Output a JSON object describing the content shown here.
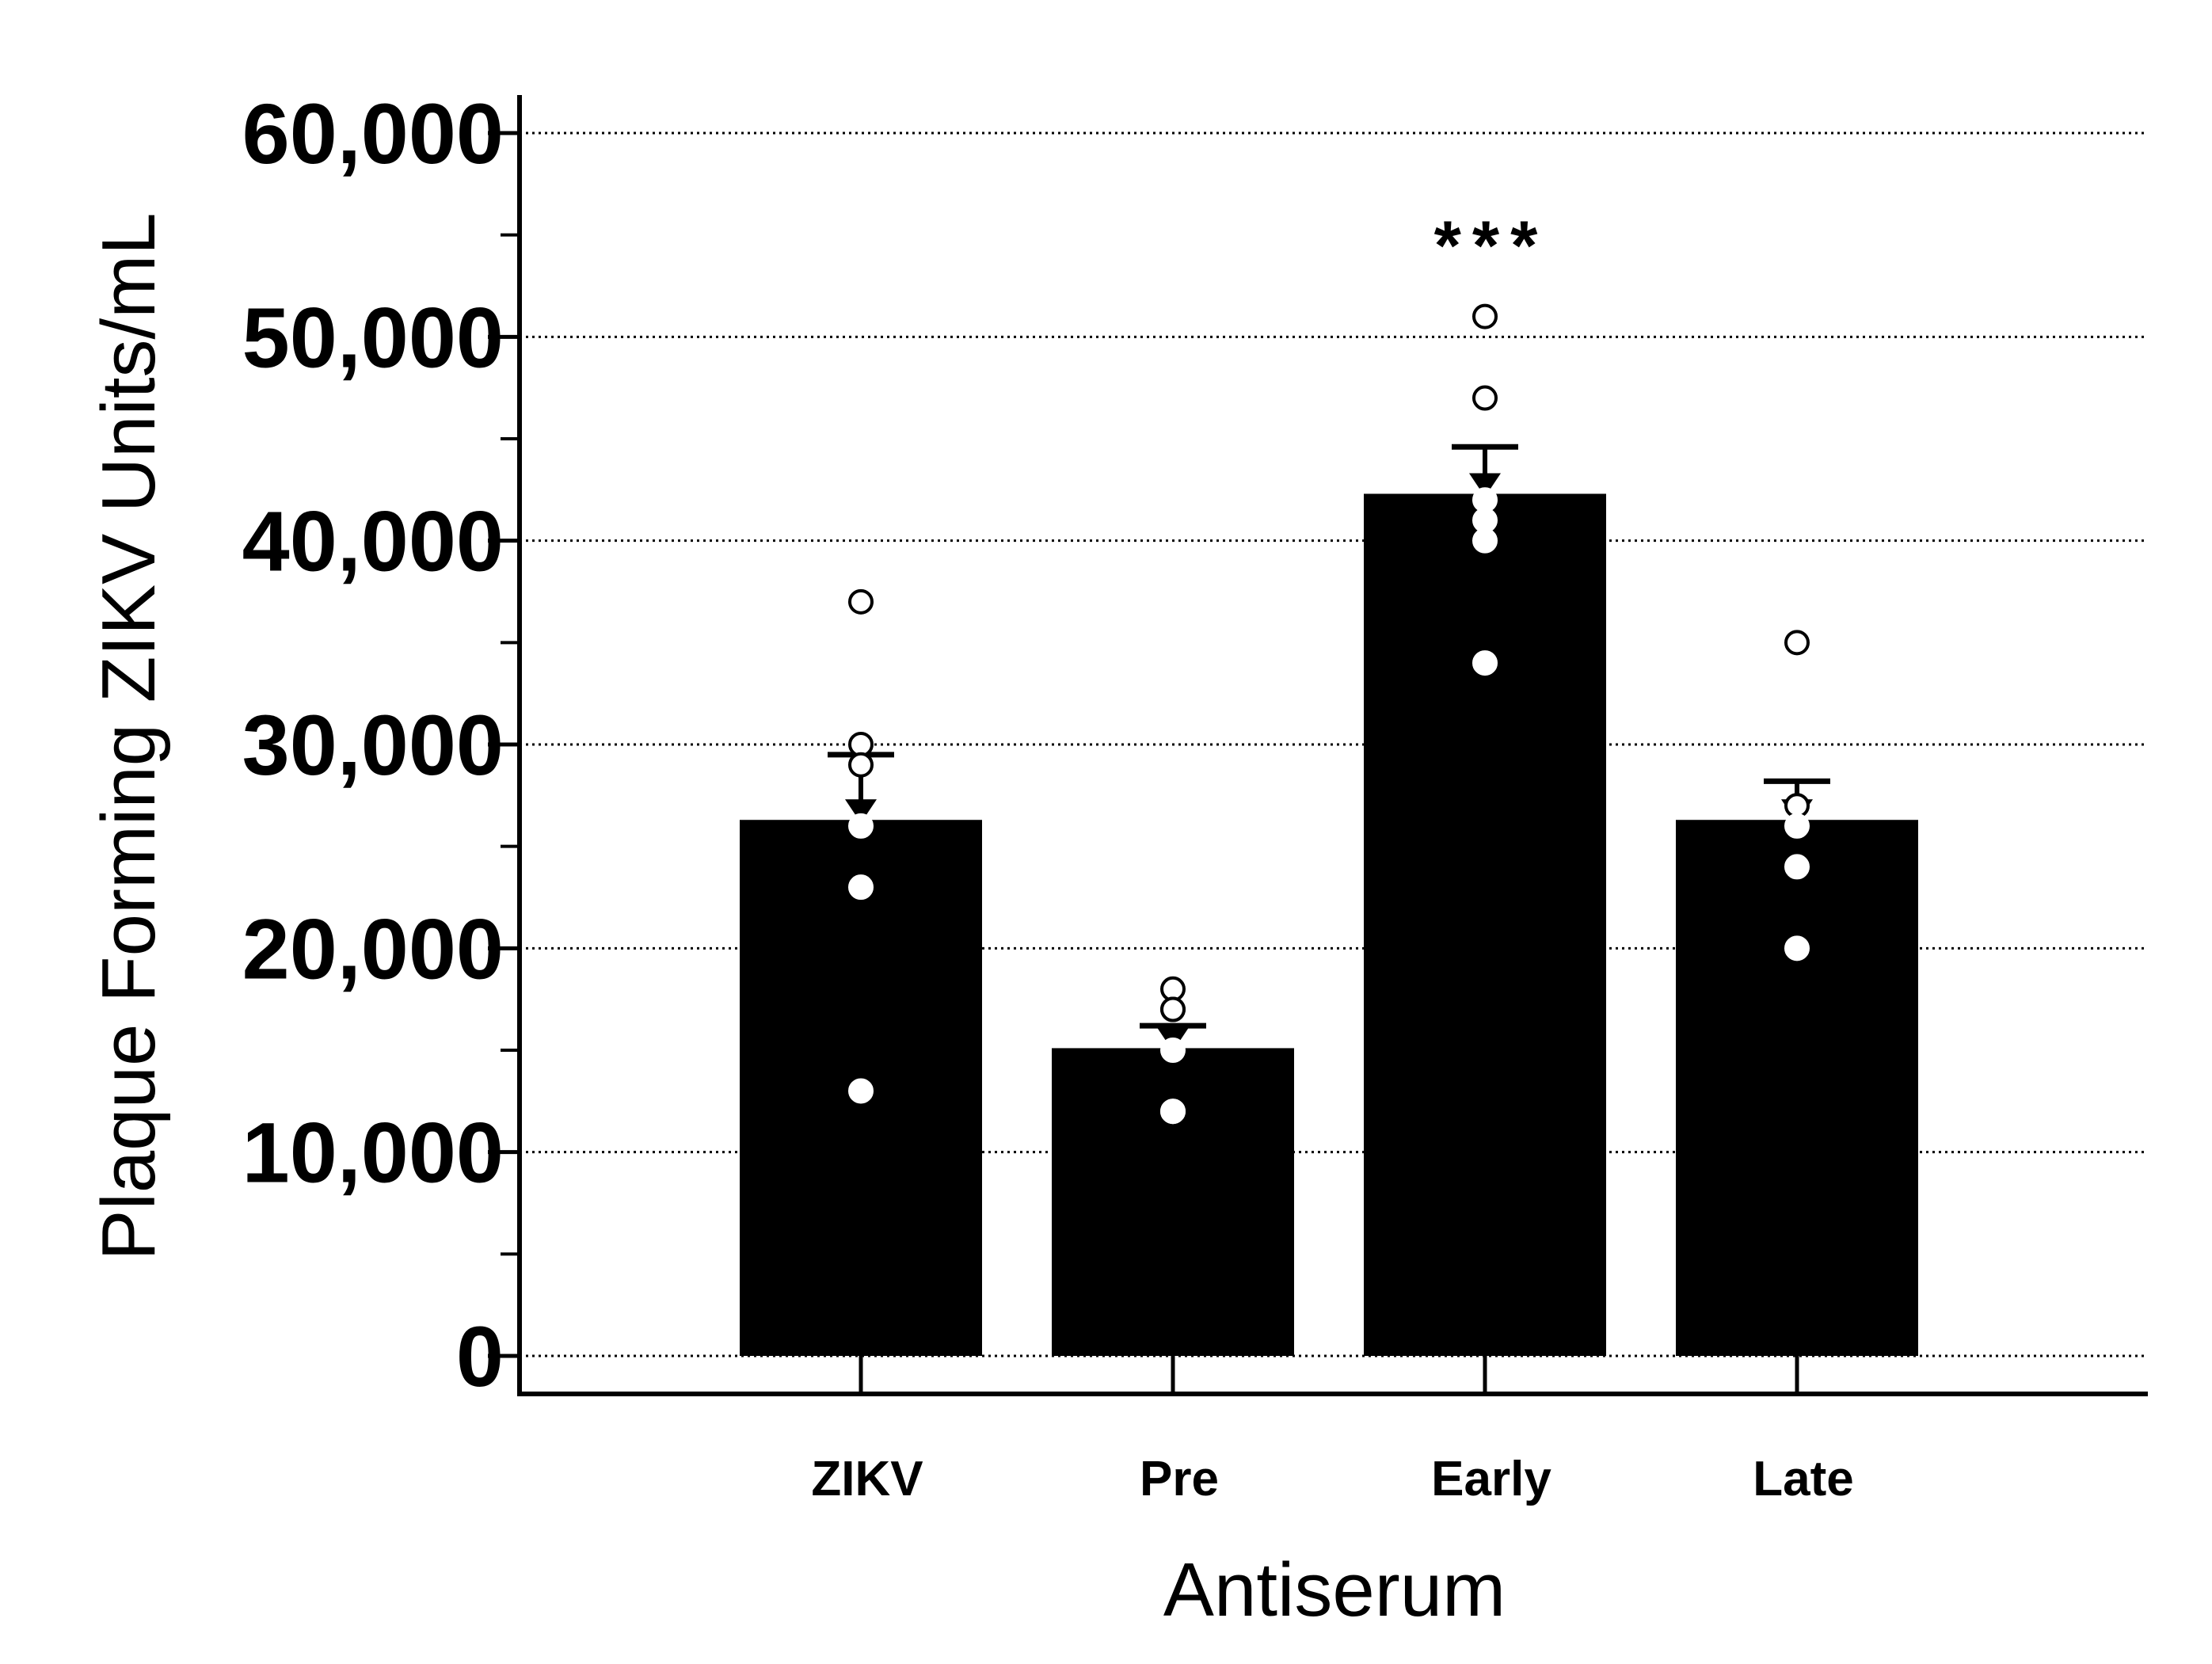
{
  "chart_data": {
    "type": "bar",
    "title": "",
    "xlabel": "Antiserum",
    "ylabel": "Plaque Forming ZIKV Units/mL",
    "ylim": [
      0,
      60000
    ],
    "yticks": [
      0,
      10000,
      20000,
      30000,
      40000,
      50000,
      60000
    ],
    "ytick_labels": [
      "0",
      "10,000",
      "20,000",
      "30,000",
      "40,000",
      "50,000",
      "60,000"
    ],
    "grid": true,
    "legend": "none",
    "categories": [
      "ZIKV",
      "Pre",
      "Early",
      "Late"
    ],
    "values": [
      26300,
      15100,
      42300,
      26300
    ],
    "error": [
      3200,
      1100,
      2300,
      1900
    ],
    "points": [
      [
        37000,
        30000,
        29000,
        26000,
        23000,
        13000
      ],
      [
        18000,
        17000,
        17000,
        15000,
        12000,
        12000
      ],
      [
        51000,
        47000,
        42000,
        41000,
        40000,
        34000
      ],
      [
        35000,
        27000,
        26000,
        24000,
        20000
      ]
    ],
    "annotations": [
      {
        "category": "Early",
        "text": "***"
      }
    ],
    "colors": {
      "bar": "#000000",
      "point_fill": "#ffffff",
      "point_stroke": "#000000",
      "background": "#ffffff"
    }
  }
}
